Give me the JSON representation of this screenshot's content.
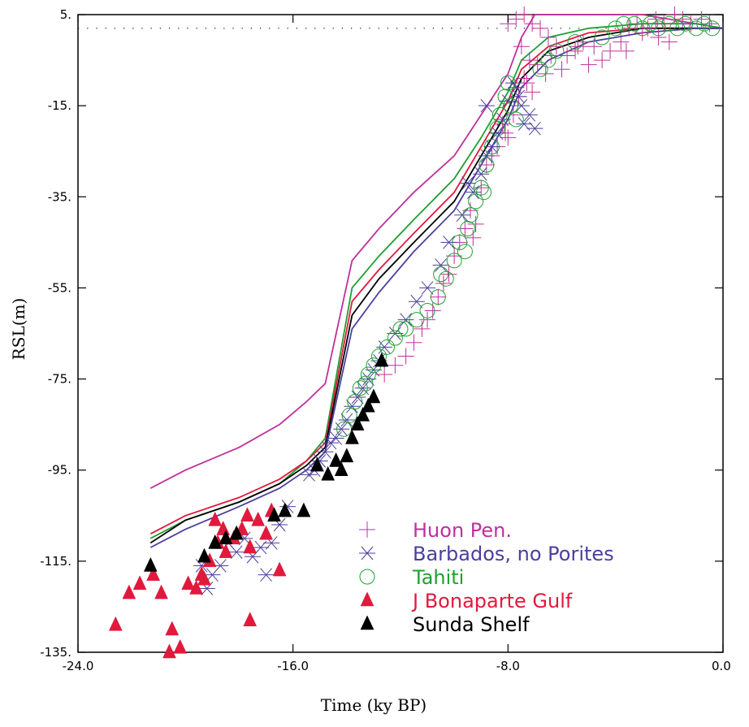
{
  "chart_data": {
    "type": "scatter",
    "title": "",
    "xlabel": "Time (ky BP)",
    "ylabel": "RSL(m)",
    "xlim": [
      -24,
      0
    ],
    "ylim": [
      -135,
      5
    ],
    "x_ticks": [
      -24,
      -16,
      -8,
      0
    ],
    "x_tick_labels": [
      "-24.0",
      "-16.0",
      "-8.0",
      "0.0"
    ],
    "y_ticks": [
      5,
      -15,
      -35,
      -55,
      -75,
      -95,
      -115,
      -135
    ],
    "y_tick_labels": [
      "5.",
      "-15.",
      "-35.",
      "-55.",
      "-75.",
      "-95.",
      "-115.",
      "-135."
    ],
    "reference_level": 2,
    "legend_position": "bottom-right",
    "series": [
      {
        "name": "Huon Pen.",
        "marker": "plus",
        "color": "#c0309c",
        "points": [
          [
            -8,
            3
          ],
          [
            -7.7,
            4
          ],
          [
            -7.4,
            5
          ],
          [
            -7.1,
            3
          ],
          [
            -6.8,
            2
          ],
          [
            -6.5,
            0
          ],
          [
            -6.2,
            -2
          ],
          [
            -5.8,
            -4
          ],
          [
            -5.5,
            -3
          ],
          [
            -5.2,
            -1
          ],
          [
            -4.8,
            -2
          ],
          [
            -4.5,
            -5
          ],
          [
            -4.2,
            -3
          ],
          [
            -3.8,
            -1
          ],
          [
            -3.5,
            2
          ],
          [
            -3.2,
            3
          ],
          [
            -2.8,
            2
          ],
          [
            -2.5,
            4
          ],
          [
            -2.2,
            3
          ],
          [
            -1.8,
            5
          ],
          [
            -1.5,
            4
          ],
          [
            -1.2,
            3
          ],
          [
            -0.8,
            4
          ],
          [
            -0.5,
            3
          ],
          [
            -6,
            -7
          ],
          [
            -6.4,
            -4
          ],
          [
            -5,
            -6
          ],
          [
            -3.6,
            -3
          ],
          [
            -2,
            -1
          ],
          [
            -2.4,
            0
          ],
          [
            -3,
            1
          ],
          [
            -5.4,
            -2
          ],
          [
            -7.5,
            -2
          ],
          [
            -7.2,
            -5
          ],
          [
            -7.4,
            -9
          ],
          [
            -7.3,
            -10
          ],
          [
            -7.6,
            -13
          ],
          [
            -7.8,
            -17
          ],
          [
            -8,
            -22
          ],
          [
            -8.4,
            -24
          ],
          [
            -8.6,
            -26
          ],
          [
            -8.8,
            -28
          ],
          [
            -9,
            -33
          ],
          [
            -9.4,
            -38
          ],
          [
            -9.6,
            -42
          ],
          [
            -9.8,
            -45
          ],
          [
            -10,
            -48
          ],
          [
            -10.2,
            -52
          ],
          [
            -10.4,
            -54
          ],
          [
            -10.6,
            -57
          ],
          [
            -10.8,
            -60
          ],
          [
            -11,
            -62
          ],
          [
            -11.2,
            -64
          ],
          [
            -11.5,
            -67
          ],
          [
            -11.8,
            -70
          ],
          [
            -12.2,
            -72
          ],
          [
            -12.6,
            -74
          ],
          [
            -9.2,
            -41
          ],
          [
            -9.3,
            -44
          ],
          [
            -8.2,
            -19
          ],
          [
            -8.1,
            -21
          ],
          [
            -7.1,
            -12
          ],
          [
            -6.9,
            -6
          ],
          [
            -6.6,
            -8
          ]
        ]
      },
      {
        "name": "Barbados, no Porites",
        "marker": "asterisk",
        "color": "#4b3f9e",
        "points": [
          [
            -7,
            -20
          ],
          [
            -7.2,
            -17
          ],
          [
            -7.5,
            -15
          ],
          [
            -7.6,
            -13
          ],
          [
            -7.7,
            -11
          ],
          [
            -7.8,
            -10
          ],
          [
            -8,
            -14
          ],
          [
            -8.2,
            -18
          ],
          [
            -8.4,
            -21
          ],
          [
            -8.6,
            -24
          ],
          [
            -8.8,
            -26
          ],
          [
            -9,
            -30
          ],
          [
            -9.3,
            -34
          ],
          [
            -9.7,
            -39
          ],
          [
            -10.2,
            -45
          ],
          [
            -10.5,
            -50
          ],
          [
            -11,
            -55
          ],
          [
            -11.4,
            -58
          ],
          [
            -11.8,
            -62
          ],
          [
            -12.2,
            -65
          ],
          [
            -12.6,
            -68
          ],
          [
            -12.8,
            -71
          ],
          [
            -13,
            -73
          ],
          [
            -13.2,
            -75
          ],
          [
            -13.4,
            -77
          ],
          [
            -13.6,
            -79
          ],
          [
            -13.8,
            -81
          ],
          [
            -14,
            -84
          ],
          [
            -14.2,
            -86
          ],
          [
            -14.4,
            -88
          ],
          [
            -14.6,
            -89
          ],
          [
            -14.8,
            -91
          ],
          [
            -15,
            -93
          ],
          [
            -15.2,
            -95
          ],
          [
            -15.4,
            -96
          ],
          [
            -18.4,
            -111
          ],
          [
            -18.7,
            -116
          ],
          [
            -18.1,
            -113
          ],
          [
            -17.8,
            -110
          ],
          [
            -17.5,
            -114
          ],
          [
            -17.2,
            -112
          ],
          [
            -16.8,
            -111
          ],
          [
            -16.5,
            -107
          ],
          [
            -16.2,
            -103
          ],
          [
            -19,
            -118
          ],
          [
            -19.2,
            -121
          ],
          [
            -19.4,
            -116
          ],
          [
            -17,
            -118
          ],
          [
            -8.8,
            -15
          ],
          [
            -7.4,
            -19
          ],
          [
            -9.5,
            -32
          ]
        ]
      },
      {
        "name": "Tahiti",
        "marker": "circle",
        "color": "#1ea032",
        "points": [
          [
            -6.8,
            -7
          ],
          [
            -6.5,
            -5
          ],
          [
            -6.2,
            -3
          ],
          [
            -5.5,
            -1
          ],
          [
            -4.5,
            0
          ],
          [
            -4,
            2
          ],
          [
            -3.7,
            3
          ],
          [
            -3.3,
            3
          ],
          [
            -3,
            2
          ],
          [
            -2.7,
            3
          ],
          [
            -2.4,
            2
          ],
          [
            -2,
            3
          ],
          [
            -1.7,
            2
          ],
          [
            -1.4,
            3
          ],
          [
            -1,
            2
          ],
          [
            -0.7,
            3
          ],
          [
            -0.4,
            2
          ],
          [
            -8,
            -10
          ],
          [
            -8.1,
            -13
          ],
          [
            -8.3,
            -17
          ],
          [
            -8.4,
            -20
          ],
          [
            -8.6,
            -24
          ],
          [
            -8.8,
            -28
          ],
          [
            -9,
            -33
          ],
          [
            -9.2,
            -36
          ],
          [
            -9.4,
            -39
          ],
          [
            -9.5,
            -42
          ],
          [
            -9.8,
            -45
          ],
          [
            -10,
            -49
          ],
          [
            -10.3,
            -53
          ],
          [
            -10.6,
            -57
          ],
          [
            -11,
            -60
          ],
          [
            -11.4,
            -62
          ],
          [
            -11.8,
            -64
          ],
          [
            -12.2,
            -66
          ],
          [
            -12.5,
            -68
          ],
          [
            -12.8,
            -70
          ],
          [
            -13,
            -72
          ],
          [
            -13.2,
            -74
          ],
          [
            -13.5,
            -77
          ],
          [
            -13.7,
            -80
          ],
          [
            -13.9,
            -83
          ],
          [
            -14.1,
            -86
          ],
          [
            -7.9,
            -15
          ],
          [
            -7.7,
            -18
          ],
          [
            -8.9,
            -34
          ],
          [
            -9.6,
            -47
          ],
          [
            -10.5,
            -52
          ],
          [
            -12,
            -64
          ],
          [
            -13.3,
            -76
          ]
        ]
      },
      {
        "name": "J Bonaparte Gulf",
        "marker": "triangle",
        "color": "#e1193c",
        "points": [
          [
            -22.6,
            -129
          ],
          [
            -22.1,
            -122
          ],
          [
            -21.7,
            -120
          ],
          [
            -21.2,
            -118
          ],
          [
            -20.9,
            -122
          ],
          [
            -20.5,
            -130
          ],
          [
            -19.9,
            -120
          ],
          [
            -19.6,
            -121
          ],
          [
            -19.3,
            -119
          ],
          [
            -19.1,
            -115
          ],
          [
            -18.8,
            -111
          ],
          [
            -18.6,
            -108
          ],
          [
            -18.2,
            -110
          ],
          [
            -17.9,
            -108
          ],
          [
            -17.6,
            -112
          ],
          [
            -17.3,
            -106
          ],
          [
            -17,
            -109
          ],
          [
            -16.8,
            -104
          ],
          [
            -16.5,
            -117
          ],
          [
            -18.5,
            -113
          ],
          [
            -19.4,
            -118
          ],
          [
            -20.2,
            -134
          ],
          [
            -20.6,
            -135
          ],
          [
            -17.6,
            -128
          ],
          [
            -18.9,
            -106
          ],
          [
            -17.7,
            -105
          ]
        ]
      },
      {
        "name": "Sunda Shelf",
        "marker": "triangle",
        "color": "#000000",
        "points": [
          [
            -21.3,
            -116
          ],
          [
            -19.3,
            -114
          ],
          [
            -18.9,
            -111
          ],
          [
            -18.5,
            -110
          ],
          [
            -18.1,
            -109
          ],
          [
            -16.7,
            -105
          ],
          [
            -16.3,
            -104
          ],
          [
            -15.6,
            -104
          ],
          [
            -15.1,
            -94
          ],
          [
            -14.7,
            -96
          ],
          [
            -14.4,
            -93
          ],
          [
            -14.2,
            -95
          ],
          [
            -14,
            -92
          ],
          [
            -13.8,
            -88
          ],
          [
            -13.6,
            -85
          ],
          [
            -13.4,
            -83
          ],
          [
            -13.2,
            -81
          ],
          [
            -13,
            -79
          ],
          [
            -12.7,
            -71
          ]
        ]
      },
      {
        "name": "",
        "marker": "line",
        "color": "#c0309c",
        "points": [
          [
            -21.3,
            -99
          ],
          [
            -20,
            -95
          ],
          [
            -18,
            -90
          ],
          [
            -16.5,
            -85
          ],
          [
            -15.5,
            -80
          ],
          [
            -14.8,
            -76
          ],
          [
            -13.8,
            -49
          ],
          [
            -12.8,
            -42
          ],
          [
            -11.5,
            -34
          ],
          [
            -10,
            -26
          ],
          [
            -9,
            -17
          ],
          [
            -8,
            -8
          ],
          [
            -7.5,
            0
          ],
          [
            -7,
            5
          ],
          [
            -6,
            5
          ],
          [
            -3,
            5
          ],
          [
            -1,
            3
          ],
          [
            0,
            2
          ]
        ]
      },
      {
        "name": "",
        "marker": "line",
        "color": "#1ea032",
        "points": [
          [
            -21.3,
            -110
          ],
          [
            -20,
            -106
          ],
          [
            -18,
            -102
          ],
          [
            -16.5,
            -98
          ],
          [
            -15.5,
            -93
          ],
          [
            -14.8,
            -88
          ],
          [
            -13.8,
            -55
          ],
          [
            -12.8,
            -48
          ],
          [
            -11.5,
            -40
          ],
          [
            -10,
            -31
          ],
          [
            -9,
            -22
          ],
          [
            -8,
            -12
          ],
          [
            -7.5,
            -5
          ],
          [
            -6.5,
            0
          ],
          [
            -5,
            2
          ],
          [
            -3,
            3
          ],
          [
            -1,
            3
          ],
          [
            0,
            2
          ]
        ]
      },
      {
        "name": "",
        "marker": "line",
        "color": "#e1193c",
        "points": [
          [
            -21.3,
            -109
          ],
          [
            -20,
            -105
          ],
          [
            -18,
            -101
          ],
          [
            -16.5,
            -97
          ],
          [
            -15.5,
            -93
          ],
          [
            -14.8,
            -89
          ],
          [
            -13.8,
            -58
          ],
          [
            -12.8,
            -51
          ],
          [
            -11.5,
            -43
          ],
          [
            -10,
            -34
          ],
          [
            -9,
            -24
          ],
          [
            -8,
            -14
          ],
          [
            -7.5,
            -7
          ],
          [
            -6.5,
            -2
          ],
          [
            -5,
            1
          ],
          [
            -3,
            2
          ],
          [
            -1,
            2
          ],
          [
            0,
            2
          ]
        ]
      },
      {
        "name": "",
        "marker": "line",
        "color": "#000000",
        "points": [
          [
            -21.3,
            -111
          ],
          [
            -20,
            -106
          ],
          [
            -18,
            -102
          ],
          [
            -16.5,
            -98
          ],
          [
            -15.5,
            -94
          ],
          [
            -14.8,
            -90
          ],
          [
            -13.8,
            -61
          ],
          [
            -12.8,
            -53
          ],
          [
            -11.5,
            -45
          ],
          [
            -10,
            -36
          ],
          [
            -9,
            -26
          ],
          [
            -8,
            -16
          ],
          [
            -7.5,
            -9
          ],
          [
            -6.5,
            -3
          ],
          [
            -5,
            0
          ],
          [
            -3,
            2
          ],
          [
            -1,
            2
          ],
          [
            0,
            2
          ]
        ]
      },
      {
        "name": "",
        "marker": "line",
        "color": "#4b3f9e",
        "points": [
          [
            -21.3,
            -112
          ],
          [
            -20,
            -108
          ],
          [
            -18,
            -103
          ],
          [
            -16.5,
            -99
          ],
          [
            -15.5,
            -95
          ],
          [
            -14.8,
            -91
          ],
          [
            -13.8,
            -64
          ],
          [
            -12.8,
            -56
          ],
          [
            -11.5,
            -47
          ],
          [
            -10,
            -38
          ],
          [
            -9,
            -28
          ],
          [
            -8,
            -18
          ],
          [
            -7.5,
            -11
          ],
          [
            -6.5,
            -5
          ],
          [
            -5,
            -1
          ],
          [
            -3,
            1
          ],
          [
            -1,
            2
          ],
          [
            0,
            2
          ]
        ]
      }
    ]
  }
}
